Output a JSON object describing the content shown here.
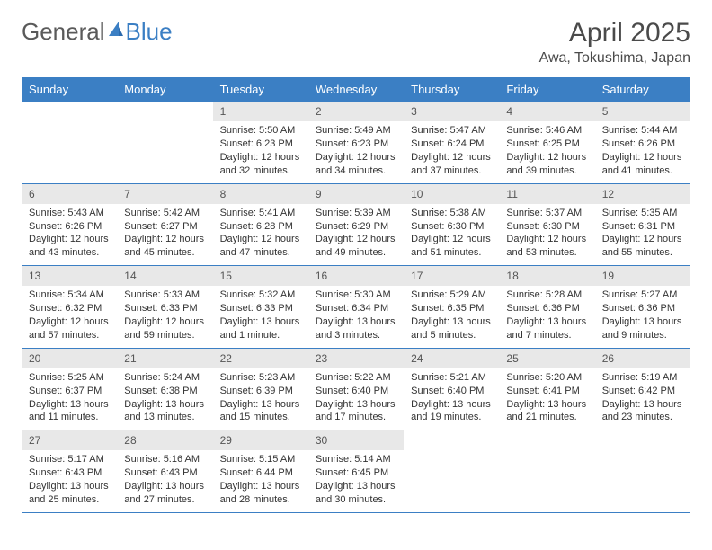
{
  "brand": {
    "part1": "General",
    "part2": "Blue"
  },
  "title": "April 2025",
  "location": "Awa, Tokushima, Japan",
  "colors": {
    "header_bg": "#3b7fc4",
    "header_text": "#ffffff",
    "daynum_bg": "#e8e8e8",
    "row_border": "#3b7fc4",
    "text": "#333333",
    "background": "#ffffff"
  },
  "typography": {
    "title_fontsize": 30,
    "location_fontsize": 16,
    "header_fontsize": 13,
    "cell_fontsize": 11
  },
  "weekdays": [
    "Sunday",
    "Monday",
    "Tuesday",
    "Wednesday",
    "Thursday",
    "Friday",
    "Saturday"
  ],
  "weeks": [
    [
      null,
      null,
      {
        "n": "1",
        "sr": "Sunrise: 5:50 AM",
        "ss": "Sunset: 6:23 PM",
        "dl1": "Daylight: 12 hours",
        "dl2": "and 32 minutes."
      },
      {
        "n": "2",
        "sr": "Sunrise: 5:49 AM",
        "ss": "Sunset: 6:23 PM",
        "dl1": "Daylight: 12 hours",
        "dl2": "and 34 minutes."
      },
      {
        "n": "3",
        "sr": "Sunrise: 5:47 AM",
        "ss": "Sunset: 6:24 PM",
        "dl1": "Daylight: 12 hours",
        "dl2": "and 37 minutes."
      },
      {
        "n": "4",
        "sr": "Sunrise: 5:46 AM",
        "ss": "Sunset: 6:25 PM",
        "dl1": "Daylight: 12 hours",
        "dl2": "and 39 minutes."
      },
      {
        "n": "5",
        "sr": "Sunrise: 5:44 AM",
        "ss": "Sunset: 6:26 PM",
        "dl1": "Daylight: 12 hours",
        "dl2": "and 41 minutes."
      }
    ],
    [
      {
        "n": "6",
        "sr": "Sunrise: 5:43 AM",
        "ss": "Sunset: 6:26 PM",
        "dl1": "Daylight: 12 hours",
        "dl2": "and 43 minutes."
      },
      {
        "n": "7",
        "sr": "Sunrise: 5:42 AM",
        "ss": "Sunset: 6:27 PM",
        "dl1": "Daylight: 12 hours",
        "dl2": "and 45 minutes."
      },
      {
        "n": "8",
        "sr": "Sunrise: 5:41 AM",
        "ss": "Sunset: 6:28 PM",
        "dl1": "Daylight: 12 hours",
        "dl2": "and 47 minutes."
      },
      {
        "n": "9",
        "sr": "Sunrise: 5:39 AM",
        "ss": "Sunset: 6:29 PM",
        "dl1": "Daylight: 12 hours",
        "dl2": "and 49 minutes."
      },
      {
        "n": "10",
        "sr": "Sunrise: 5:38 AM",
        "ss": "Sunset: 6:30 PM",
        "dl1": "Daylight: 12 hours",
        "dl2": "and 51 minutes."
      },
      {
        "n": "11",
        "sr": "Sunrise: 5:37 AM",
        "ss": "Sunset: 6:30 PM",
        "dl1": "Daylight: 12 hours",
        "dl2": "and 53 minutes."
      },
      {
        "n": "12",
        "sr": "Sunrise: 5:35 AM",
        "ss": "Sunset: 6:31 PM",
        "dl1": "Daylight: 12 hours",
        "dl2": "and 55 minutes."
      }
    ],
    [
      {
        "n": "13",
        "sr": "Sunrise: 5:34 AM",
        "ss": "Sunset: 6:32 PM",
        "dl1": "Daylight: 12 hours",
        "dl2": "and 57 minutes."
      },
      {
        "n": "14",
        "sr": "Sunrise: 5:33 AM",
        "ss": "Sunset: 6:33 PM",
        "dl1": "Daylight: 12 hours",
        "dl2": "and 59 minutes."
      },
      {
        "n": "15",
        "sr": "Sunrise: 5:32 AM",
        "ss": "Sunset: 6:33 PM",
        "dl1": "Daylight: 13 hours",
        "dl2": "and 1 minute."
      },
      {
        "n": "16",
        "sr": "Sunrise: 5:30 AM",
        "ss": "Sunset: 6:34 PM",
        "dl1": "Daylight: 13 hours",
        "dl2": "and 3 minutes."
      },
      {
        "n": "17",
        "sr": "Sunrise: 5:29 AM",
        "ss": "Sunset: 6:35 PM",
        "dl1": "Daylight: 13 hours",
        "dl2": "and 5 minutes."
      },
      {
        "n": "18",
        "sr": "Sunrise: 5:28 AM",
        "ss": "Sunset: 6:36 PM",
        "dl1": "Daylight: 13 hours",
        "dl2": "and 7 minutes."
      },
      {
        "n": "19",
        "sr": "Sunrise: 5:27 AM",
        "ss": "Sunset: 6:36 PM",
        "dl1": "Daylight: 13 hours",
        "dl2": "and 9 minutes."
      }
    ],
    [
      {
        "n": "20",
        "sr": "Sunrise: 5:25 AM",
        "ss": "Sunset: 6:37 PM",
        "dl1": "Daylight: 13 hours",
        "dl2": "and 11 minutes."
      },
      {
        "n": "21",
        "sr": "Sunrise: 5:24 AM",
        "ss": "Sunset: 6:38 PM",
        "dl1": "Daylight: 13 hours",
        "dl2": "and 13 minutes."
      },
      {
        "n": "22",
        "sr": "Sunrise: 5:23 AM",
        "ss": "Sunset: 6:39 PM",
        "dl1": "Daylight: 13 hours",
        "dl2": "and 15 minutes."
      },
      {
        "n": "23",
        "sr": "Sunrise: 5:22 AM",
        "ss": "Sunset: 6:40 PM",
        "dl1": "Daylight: 13 hours",
        "dl2": "and 17 minutes."
      },
      {
        "n": "24",
        "sr": "Sunrise: 5:21 AM",
        "ss": "Sunset: 6:40 PM",
        "dl1": "Daylight: 13 hours",
        "dl2": "and 19 minutes."
      },
      {
        "n": "25",
        "sr": "Sunrise: 5:20 AM",
        "ss": "Sunset: 6:41 PM",
        "dl1": "Daylight: 13 hours",
        "dl2": "and 21 minutes."
      },
      {
        "n": "26",
        "sr": "Sunrise: 5:19 AM",
        "ss": "Sunset: 6:42 PM",
        "dl1": "Daylight: 13 hours",
        "dl2": "and 23 minutes."
      }
    ],
    [
      {
        "n": "27",
        "sr": "Sunrise: 5:17 AM",
        "ss": "Sunset: 6:43 PM",
        "dl1": "Daylight: 13 hours",
        "dl2": "and 25 minutes."
      },
      {
        "n": "28",
        "sr": "Sunrise: 5:16 AM",
        "ss": "Sunset: 6:43 PM",
        "dl1": "Daylight: 13 hours",
        "dl2": "and 27 minutes."
      },
      {
        "n": "29",
        "sr": "Sunrise: 5:15 AM",
        "ss": "Sunset: 6:44 PM",
        "dl1": "Daylight: 13 hours",
        "dl2": "and 28 minutes."
      },
      {
        "n": "30",
        "sr": "Sunrise: 5:14 AM",
        "ss": "Sunset: 6:45 PM",
        "dl1": "Daylight: 13 hours",
        "dl2": "and 30 minutes."
      },
      null,
      null,
      null
    ]
  ]
}
